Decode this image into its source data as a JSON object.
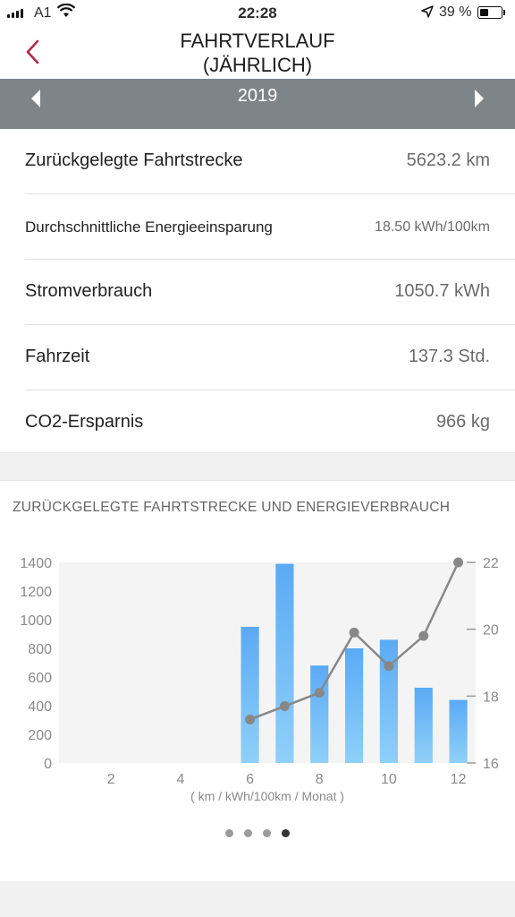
{
  "status_bar": {
    "carrier": "A1",
    "time": "22:28",
    "battery": "39 %"
  },
  "header": {
    "title_line1": "FAHRTVERLAUF",
    "title_line2": "(JÄHRLICH)"
  },
  "year_selector": {
    "year": "2019"
  },
  "stats": [
    {
      "label": "Zurückgelegte Fahrtstrecke",
      "value": "5623.2 km"
    },
    {
      "label": "Durchschnittliche Energieeinsparung",
      "value": "18.50 kWh/100km"
    },
    {
      "label": "Stromverbrauch",
      "value": "1050.7 kWh"
    },
    {
      "label": "Fahrzeit",
      "value": "137.3 Std."
    },
    {
      "label": "CO2-Ersparnis",
      "value": "966 kg"
    }
  ],
  "chart_section_title": "ZURÜCKGELEGTE FAHRTSTRECKE UND ENERGIEVERBRAUCH",
  "chart_data": {
    "type": "bar",
    "xlabel": "( km / kWh/100km / Monat )",
    "x_ticks": [
      "2",
      "4",
      "6",
      "8",
      "10",
      "12"
    ],
    "x_range": [
      0.5,
      12.5
    ],
    "ylim": [
      0,
      1400
    ],
    "y_ticks": [
      "0",
      "200",
      "400",
      "600",
      "800",
      "1000",
      "1200",
      "1400"
    ],
    "y2lim": [
      16,
      22
    ],
    "y2_ticks": [
      "16",
      "18",
      "20",
      "22"
    ],
    "grid": false,
    "series": [
      {
        "kind": "bar",
        "axis": "left",
        "x": [
          6,
          7,
          8,
          9,
          10,
          11,
          12
        ],
        "values": [
          950,
          1390,
          680,
          800,
          860,
          525,
          440
        ]
      },
      {
        "kind": "line",
        "axis": "right",
        "x": [
          6,
          7,
          8,
          9,
          10,
          11,
          12
        ],
        "values": [
          17.3,
          17.7,
          18.1,
          19.9,
          18.9,
          19.8,
          22.0
        ]
      }
    ],
    "colors": {
      "bar_top": "#5aaaf5",
      "bar_bottom": "#8fd0f8",
      "line": "#888888",
      "plot_bg": "#f4f4f4",
      "axis_text": "#8a8a8a"
    }
  },
  "pager": {
    "count": 4,
    "active": 3
  }
}
